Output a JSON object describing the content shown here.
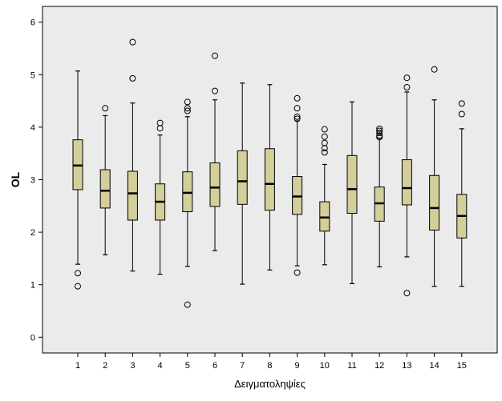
{
  "chart_data": {
    "type": "boxplot",
    "xlabel": "Δειγματοληψίες",
    "ylabel": "OL",
    "ylim": [
      -0.3,
      6.3
    ],
    "yticks": [
      0,
      1,
      2,
      3,
      4,
      5,
      6
    ],
    "grid": false,
    "colors": {
      "plot_background": "#ebebeb",
      "box_fill": "#d3ce9a",
      "stroke": "#000000"
    },
    "categories": [
      "1",
      "2",
      "3",
      "4",
      "5",
      "6",
      "7",
      "8",
      "9",
      "10",
      "11",
      "12",
      "13",
      "14",
      "15"
    ],
    "boxes": [
      {
        "category": "1",
        "whisker_low": 1.39,
        "q1": 2.81,
        "median": 3.27,
        "q3": 3.76,
        "whisker_high": 5.07,
        "outliers": [
          1.22,
          0.97
        ]
      },
      {
        "category": "2",
        "whisker_low": 1.57,
        "q1": 2.46,
        "median": 2.79,
        "q3": 3.19,
        "whisker_high": 4.22,
        "outliers": [
          4.36
        ]
      },
      {
        "category": "3",
        "whisker_low": 1.26,
        "q1": 2.23,
        "median": 2.74,
        "q3": 3.16,
        "whisker_high": 4.46,
        "outliers": [
          5.62,
          4.93
        ]
      },
      {
        "category": "4",
        "whisker_low": 1.2,
        "q1": 2.23,
        "median": 2.58,
        "q3": 2.92,
        "whisker_high": 3.85,
        "outliers": [
          4.08,
          3.98
        ]
      },
      {
        "category": "5",
        "whisker_low": 1.35,
        "q1": 2.39,
        "median": 2.75,
        "q3": 3.15,
        "whisker_high": 4.2,
        "outliers": [
          4.48,
          4.36,
          4.31,
          0.62
        ]
      },
      {
        "category": "6",
        "whisker_low": 1.65,
        "q1": 2.49,
        "median": 2.85,
        "q3": 3.32,
        "whisker_high": 4.52,
        "outliers": [
          5.36,
          4.69
        ]
      },
      {
        "category": "7",
        "whisker_low": 1.01,
        "q1": 2.53,
        "median": 2.97,
        "q3": 3.55,
        "whisker_high": 4.84,
        "outliers": []
      },
      {
        "category": "8",
        "whisker_low": 1.28,
        "q1": 2.42,
        "median": 2.92,
        "q3": 3.59,
        "whisker_high": 4.81,
        "outliers": []
      },
      {
        "category": "9",
        "whisker_low": 1.36,
        "q1": 2.34,
        "median": 2.68,
        "q3": 3.06,
        "whisker_high": 4.12,
        "outliers": [
          4.55,
          4.36,
          4.2,
          4.16,
          1.23
        ]
      },
      {
        "category": "10",
        "whisker_low": 1.38,
        "q1": 2.02,
        "median": 2.28,
        "q3": 2.58,
        "whisker_high": 3.29,
        "outliers": [
          3.96,
          3.82,
          3.7,
          3.6,
          3.52
        ]
      },
      {
        "category": "11",
        "whisker_low": 1.02,
        "q1": 2.36,
        "median": 2.82,
        "q3": 3.46,
        "whisker_high": 4.48,
        "outliers": []
      },
      {
        "category": "12",
        "whisker_low": 1.34,
        "q1": 2.21,
        "median": 2.55,
        "q3": 2.86,
        "whisker_high": 3.79,
        "outliers": [
          3.97,
          3.93,
          3.89,
          3.84,
          3.81
        ]
      },
      {
        "category": "13",
        "whisker_low": 1.53,
        "q1": 2.52,
        "median": 2.84,
        "q3": 3.38,
        "whisker_high": 4.67,
        "outliers": [
          4.94,
          4.76,
          0.84
        ]
      },
      {
        "category": "14",
        "whisker_low": 0.97,
        "q1": 2.04,
        "median": 2.46,
        "q3": 3.08,
        "whisker_high": 4.52,
        "outliers": [
          5.1
        ]
      },
      {
        "category": "15",
        "whisker_low": 0.97,
        "q1": 1.89,
        "median": 2.31,
        "q3": 2.72,
        "whisker_high": 3.97,
        "outliers": [
          4.45,
          4.25
        ]
      }
    ]
  }
}
